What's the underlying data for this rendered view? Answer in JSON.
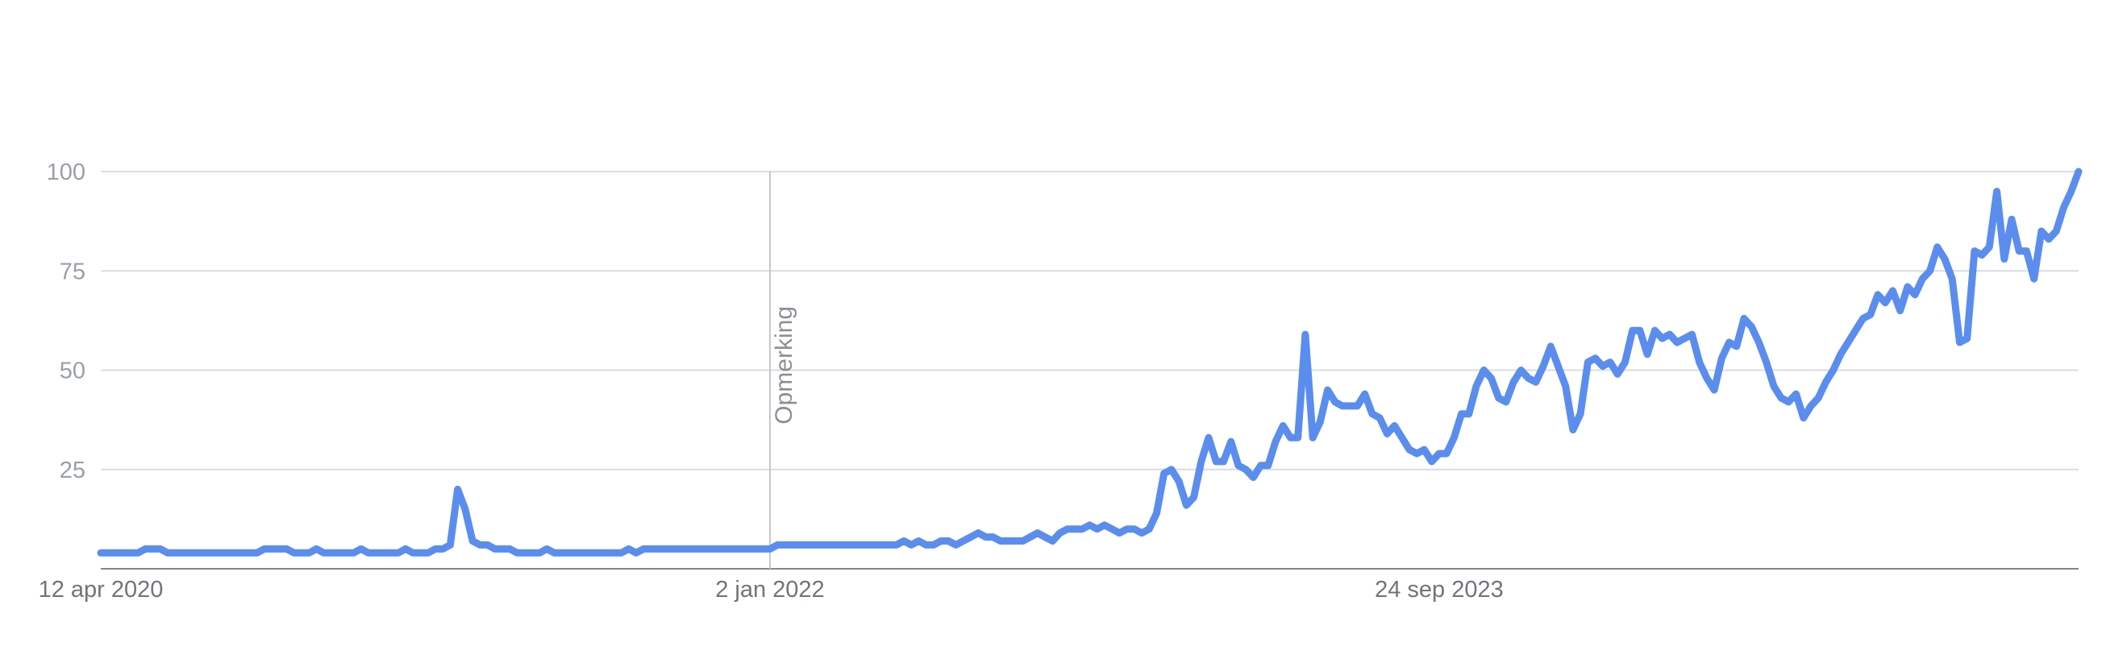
{
  "chart_data": {
    "type": "line",
    "title": "",
    "xlabel": "",
    "ylabel": "",
    "ylim": [
      0,
      100
    ],
    "yticks": [
      25,
      50,
      75,
      100
    ],
    "ytick_labels": [
      "25",
      "50",
      "75",
      "100"
    ],
    "x_tick_labels": [
      "12 apr 2020",
      "2 jan 2022",
      "24 sep 2023"
    ],
    "x_start": "2020-04-12",
    "x_step": "week",
    "grid": true,
    "legend": "none",
    "annotation": {
      "text": "Opmerking",
      "date": "2022-01-02"
    },
    "colors": {
      "series": "#5b8def",
      "grid": "#dadce0",
      "axis": "#80868b",
      "text": "#9aa0a6"
    },
    "series": [
      {
        "values": [
          4,
          4,
          4,
          4,
          4,
          4,
          5,
          5,
          5,
          4,
          4,
          4,
          4,
          4,
          4,
          4,
          4,
          4,
          4,
          4,
          4,
          4,
          5,
          5,
          5,
          5,
          4,
          4,
          4,
          5,
          4,
          4,
          4,
          4,
          4,
          5,
          4,
          4,
          4,
          4,
          4,
          5,
          4,
          4,
          4,
          5,
          5,
          6,
          20,
          15,
          7,
          6,
          6,
          5,
          5,
          5,
          4,
          4,
          4,
          4,
          5,
          4,
          4,
          4,
          4,
          4,
          4,
          4,
          4,
          4,
          4,
          5,
          4,
          5,
          5,
          5,
          5,
          5,
          5,
          5,
          5,
          5,
          5,
          5,
          5,
          5,
          5,
          5,
          5,
          5,
          5,
          6,
          6,
          6,
          6,
          6,
          6,
          6,
          6,
          6,
          6,
          6,
          6,
          6,
          6,
          6,
          6,
          6,
          7,
          6,
          7,
          6,
          6,
          7,
          7,
          6,
          7,
          8,
          9,
          8,
          8,
          7,
          7,
          7,
          7,
          8,
          9,
          8,
          7,
          9,
          10,
          10,
          10,
          11,
          10,
          11,
          10,
          9,
          10,
          10,
          9,
          10,
          14,
          24,
          25,
          22,
          16,
          18,
          27,
          33,
          27,
          27,
          32,
          26,
          25,
          23,
          26,
          26,
          32,
          36,
          33,
          33,
          59,
          33,
          37,
          45,
          42,
          41,
          41,
          41,
          44,
          39,
          38,
          34,
          36,
          33,
          30,
          29,
          30,
          27,
          29,
          29,
          33,
          39,
          39,
          46,
          50,
          48,
          43,
          42,
          47,
          50,
          48,
          47,
          51,
          56,
          51,
          46,
          35,
          39,
          52,
          53,
          51,
          52,
          49,
          52,
          60,
          60,
          54,
          60,
          58,
          59,
          57,
          58,
          59,
          52,
          48,
          45,
          53,
          57,
          56,
          63,
          61,
          57,
          52,
          46,
          43,
          42,
          44,
          38,
          41,
          43,
          47,
          50,
          54,
          57,
          60,
          63,
          64,
          69,
          67,
          70,
          65,
          71,
          69,
          73,
          75,
          81,
          78,
          73,
          57,
          58,
          80,
          79,
          81,
          95,
          78,
          88,
          80,
          80,
          73,
          85,
          83,
          85,
          91,
          95,
          100
        ]
      }
    ]
  }
}
